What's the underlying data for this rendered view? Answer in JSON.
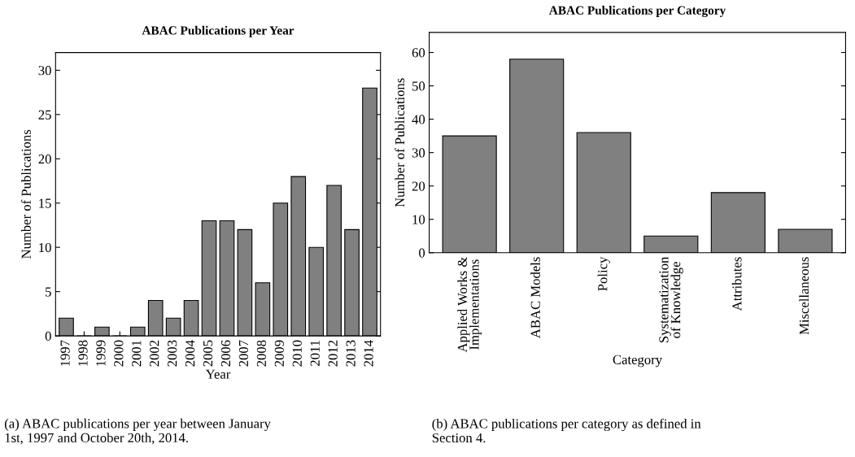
{
  "chart_data": [
    {
      "type": "bar",
      "title": "ABAC Publications per Year",
      "xlabel": "Year",
      "ylabel": "Number of Publications",
      "categories": [
        "1997",
        "1998",
        "1999",
        "2000",
        "2001",
        "2002",
        "2003",
        "2004",
        "2005",
        "2006",
        "2007",
        "2008",
        "2009",
        "2010",
        "2011",
        "2012",
        "2013",
        "2014"
      ],
      "values": [
        2,
        0,
        1,
        0,
        1,
        4,
        2,
        4,
        13,
        13,
        12,
        6,
        15,
        18,
        10,
        17,
        12,
        28
      ],
      "color": "#808080",
      "ylim": [
        0,
        32
      ],
      "yticks": [
        0,
        5,
        10,
        15,
        20,
        25,
        30
      ],
      "grid": false,
      "annotations": [
        "(a) ABAC publications per year between January\n1st, 1997 and October 20th, 2014."
      ]
    },
    {
      "type": "bar",
      "title": "ABAC Publications per Category",
      "xlabel": "Category",
      "ylabel": "Number of Publications",
      "categories": [
        "Applied Works &\nImplementations",
        "ABAC Models",
        "Policy",
        "Systematization\nof Knowledge",
        "Attributes",
        "Miscellaneous"
      ],
      "values": [
        35,
        58,
        36,
        5,
        18,
        7
      ],
      "color": "#808080",
      "ylim": [
        0,
        66
      ],
      "yticks": [
        0,
        10,
        20,
        30,
        40,
        50,
        60
      ],
      "grid": false,
      "annotations": [
        "(b) ABAC publications per category as defined in\nSection 4."
      ]
    }
  ]
}
